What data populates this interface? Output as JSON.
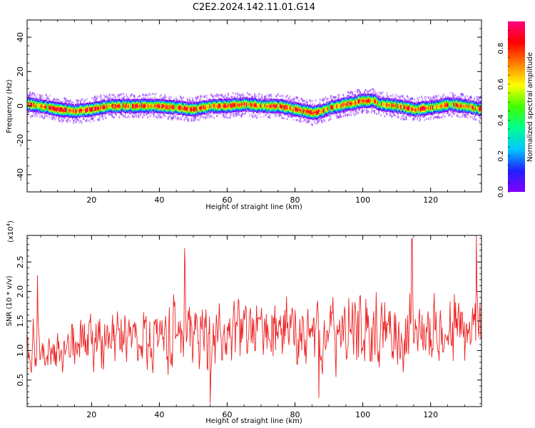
{
  "title": "C2E2.2024.142.11.01.G14",
  "chart_data": [
    {
      "type": "heatmap",
      "xlabel": "Height of straight line (km)",
      "ylabel": "Frequency (Hz)",
      "xlim": [
        1,
        135
      ],
      "ylim": [
        -50,
        50
      ],
      "x_ticks": [
        20,
        40,
        60,
        80,
        100,
        120
      ],
      "y_ticks": [
        40,
        20,
        0,
        -20,
        -40
      ],
      "y_tick_labels": [
        "40",
        "20",
        "0",
        "-20",
        "-40"
      ],
      "colorbar": {
        "label": "Normalized spectral amplitude",
        "range": [
          0.0,
          0.95
        ],
        "ticks": [
          0.0,
          0.2,
          0.4,
          0.6,
          0.8
        ],
        "tick_labels": [
          "0.0",
          "0.2",
          "0.4",
          "0.6",
          "0.8"
        ],
        "colormap": [
          "#ffffff",
          "#e0c0ff",
          "#8000ff",
          "#2020ff",
          "#00c8ff",
          "#00ff90",
          "#40ff00",
          "#ffff00",
          "#ff8000",
          "#ff0000",
          "#ff0080"
        ]
      },
      "ridge_center_hz": {
        "x": [
          1,
          5,
          10,
          15,
          20,
          25,
          30,
          35,
          40,
          45,
          50,
          55,
          60,
          65,
          70,
          75,
          80,
          83,
          85,
          88,
          90,
          95,
          100,
          103,
          105,
          110,
          115,
          120,
          125,
          130,
          135
        ],
        "y": [
          1,
          0,
          -2,
          -3,
          -2,
          0,
          0,
          0,
          0,
          -1,
          -2,
          0,
          0,
          1,
          0,
          0,
          -2,
          -3,
          -4,
          -3,
          -1,
          1,
          3,
          3,
          1,
          0,
          -2,
          -1,
          1,
          0,
          -2
        ]
      },
      "grid": false
    },
    {
      "type": "line",
      "xlabel": "Height of straight line (km)",
      "ylabel": "SNR (10 * v/v)",
      "y_multiplier_label": "(x10",
      "y_multiplier_exp": "4",
      "xlim": [
        1,
        135
      ],
      "ylim": [
        0.05,
        2.95
      ],
      "x_ticks": [
        20,
        40,
        60,
        80,
        100,
        120
      ],
      "y_ticks": [
        0.5,
        1.0,
        1.5,
        2.0,
        2.5
      ],
      "y_tick_labels": [
        "0.5",
        "1.0",
        "1.5",
        "2.0",
        "2.5"
      ],
      "series": [
        {
          "color": "#ee2222",
          "envelope": {
            "x": [
              1,
              10,
              20,
              30,
              40,
              50,
              60,
              70,
              80,
              90,
              100,
              110,
              120,
              130,
              135
            ],
            "mean": [
              1.0,
              1.0,
              1.15,
              1.2,
              1.25,
              1.3,
              1.3,
              1.3,
              1.3,
              1.3,
              1.3,
              1.35,
              1.35,
              1.35,
              1.3
            ],
            "spread": [
              0.45,
              0.5,
              0.55,
              0.6,
              0.65,
              0.7,
              0.7,
              0.65,
              0.7,
              0.7,
              0.75,
              0.75,
              0.75,
              0.75,
              0.7
            ]
          },
          "peaks": [
            {
              "x": 4,
              "y": 2.27
            },
            {
              "x": 47.5,
              "y": 2.73
            },
            {
              "x": 114.5,
              "y": 2.9
            },
            {
              "x": 133.5,
              "y": 2.95
            }
          ],
          "troughs": [
            {
              "x": 55,
              "y": 0.08
            },
            {
              "x": 87,
              "y": 0.2
            }
          ]
        }
      ],
      "grid": false
    }
  ]
}
